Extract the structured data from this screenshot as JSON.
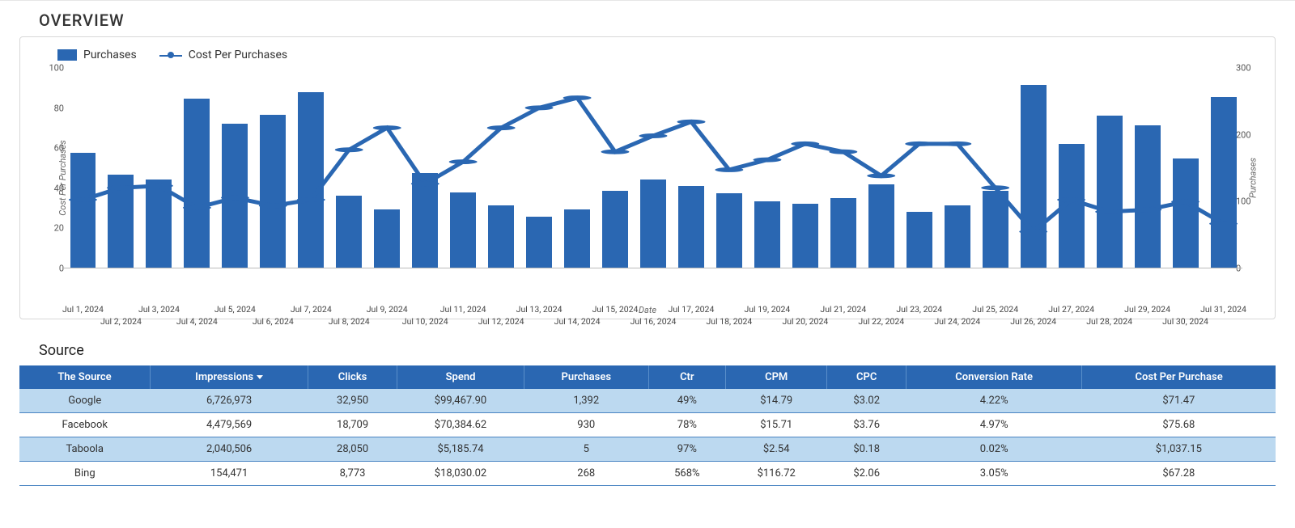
{
  "overview": {
    "title": "OVERVIEW",
    "chart": {
      "type": "bar+line",
      "legend": {
        "bar_label": "Purchases",
        "line_label": "Cost Per Purchases"
      },
      "x_axis_label": "Date",
      "y_left_label": "Cost Per Purchases",
      "y_right_label": "Purchases",
      "y_left": {
        "min": 0,
        "max": 100,
        "ticks": [
          0,
          20,
          40,
          60,
          80,
          100
        ]
      },
      "y_right": {
        "min": 0,
        "max": 300,
        "ticks": [
          0,
          100,
          200,
          300
        ]
      },
      "bar_color": "#2a67b2",
      "line_color": "#2a67b2",
      "marker_color": "#2a67b2",
      "background_color": "#ffffff",
      "dates": [
        "Jul 1, 2024",
        "Jul 2, 2024",
        "Jul 3, 2024",
        "Jul 4, 2024",
        "Jul 5, 2024",
        "Jul 6, 2024",
        "Jul 7, 2024",
        "Jul 8, 2024",
        "Jul 9, 2024",
        "Jul 10, 2024",
        "Jul 11, 2024",
        "Jul 12, 2024",
        "Jul 13, 2024",
        "Jul 14, 2024",
        "Jul 15, 2024",
        "Jul 16, 2024",
        "Jul 17, 2024",
        "Jul 18, 2024",
        "Jul 19, 2024",
        "Jul 20, 2024",
        "Jul 21, 2024",
        "Jul 22, 2024",
        "Jul 23, 2024",
        "Jul 24, 2024",
        "Jul 25, 2024",
        "Jul 26, 2024",
        "Jul 27, 2024",
        "Jul 28, 2024",
        "Jul 29, 2024",
        "Jul 30, 2024",
        "Jul 31, 2024"
      ],
      "purchases": [
        172,
        140,
        132,
        254,
        216,
        230,
        264,
        108,
        88,
        142,
        113,
        94,
        76,
        88,
        115,
        132,
        123,
        112,
        100,
        96,
        105,
        125,
        84,
        94,
        115,
        274,
        186,
        228,
        214,
        164,
        256
      ],
      "cost_per_purchases": [
        34,
        40,
        41,
        30,
        35,
        31,
        34,
        59,
        70,
        42,
        53,
        70,
        80,
        85,
        58,
        66,
        73,
        49,
        54,
        62,
        58,
        46,
        62,
        62,
        40,
        18,
        34,
        28,
        29,
        33,
        22
      ]
    }
  },
  "source": {
    "title": "Source",
    "sorted_column": "Impressions",
    "sort_direction": "desc",
    "columns": [
      "The Source",
      "Impressions",
      "Clicks",
      "Spend",
      "Purchases",
      "Ctr",
      "CPM",
      "CPC",
      "Conversion Rate",
      "Cost Per Purchase"
    ],
    "rows": [
      [
        "Google",
        "6,726,973",
        "32,950",
        "$99,467.90",
        "1,392",
        "49%",
        "$14.79",
        "$3.02",
        "4.22%",
        "$71.47"
      ],
      [
        "Facebook",
        "4,479,569",
        "18,709",
        "$70,384.62",
        "930",
        "78%",
        "$15.71",
        "$3.76",
        "4.97%",
        "$75.68"
      ],
      [
        "Taboola",
        "2,040,506",
        "28,050",
        "$5,185.74",
        "5",
        "97%",
        "$2.54",
        "$0.18",
        "0.02%",
        "$1,037.15"
      ],
      [
        "Bing",
        "154,471",
        "8,773",
        "$18,030.02",
        "268",
        "568%",
        "$116.72",
        "$2.06",
        "3.05%",
        "$67.28"
      ]
    ],
    "header_bg": "#2a67b2",
    "header_fg": "#ffffff",
    "row_alt_bg": "#bcd9f0",
    "row_bg": "#ffffff"
  }
}
